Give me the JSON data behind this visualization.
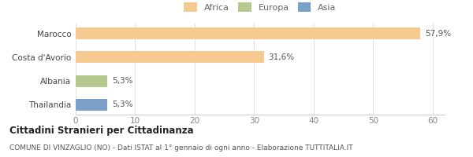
{
  "categories": [
    "Thailandia",
    "Albania",
    "Costa d'Avorio",
    "Marocco"
  ],
  "values": [
    5.3,
    5.3,
    31.6,
    57.9
  ],
  "labels": [
    "5,3%",
    "5,3%",
    "31,6%",
    "57,9%"
  ],
  "colors": [
    "#7a9fc9",
    "#b5c98e",
    "#f5c990",
    "#f5c990"
  ],
  "legend_items": [
    {
      "label": "Africa",
      "color": "#f5c990"
    },
    {
      "label": "Europa",
      "color": "#b5c98e"
    },
    {
      "label": "Asia",
      "color": "#7a9fc9"
    }
  ],
  "xlim": [
    0,
    62
  ],
  "xticks": [
    0,
    10,
    20,
    30,
    40,
    50,
    60
  ],
  "title": "Cittadini Stranieri per Cittadinanza",
  "subtitle": "COMUNE DI VINZAGLIO (NO) - Dati ISTAT al 1° gennaio di ogni anno - Elaborazione TUTTITALIA.IT",
  "background_color": "#ffffff",
  "bar_height": 0.5
}
